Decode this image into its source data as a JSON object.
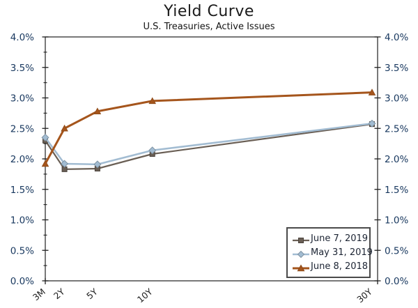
{
  "header": {
    "title": "Yield Curve",
    "subtitle": "U.S. Treasuries, Active Issues"
  },
  "chart_data": {
    "type": "line",
    "title": "Yield Curve",
    "subtitle": "U.S. Treasuries, Active Issues",
    "categories": [
      "3M",
      "2Y",
      "5Y",
      "10Y",
      "30Y"
    ],
    "x_years": [
      0.25,
      2,
      5,
      10,
      30
    ],
    "series": [
      {
        "name": "June 7, 2019",
        "marker": "square",
        "color": "#6a5f55",
        "marker_stroke": "#4a423c",
        "line_width": 2.2,
        "values": [
          2.3,
          1.83,
          1.84,
          2.08,
          2.57
        ]
      },
      {
        "name": "May 31, 2019",
        "marker": "diamond",
        "color": "#a2bcd2",
        "marker_stroke": "#7f93a3",
        "line_width": 2.5,
        "values": [
          2.35,
          1.92,
          1.91,
          2.14,
          2.58
        ]
      },
      {
        "name": "June 8, 2018",
        "marker": "triangle",
        "color": "#a5551c",
        "marker_stroke": "#8c4917",
        "line_width": 3.0,
        "values": [
          1.92,
          2.5,
          2.78,
          2.95,
          3.09
        ]
      }
    ],
    "ylim": [
      0,
      4
    ],
    "y_tick_step": 0.5,
    "y_minor_step": 0.25,
    "y_tick_labels": [
      "0.0%",
      "0.5%",
      "1.0%",
      "1.5%",
      "2.0%",
      "2.5%",
      "3.0%",
      "3.5%",
      "4.0%"
    ],
    "y_axis_sides": "both",
    "grid": false,
    "legend_position": "bottom-right",
    "colors": {
      "axis_line": "#1f1f1f",
      "y_label_text": "#17375e",
      "x_label_text": "#1c1c1c"
    }
  }
}
